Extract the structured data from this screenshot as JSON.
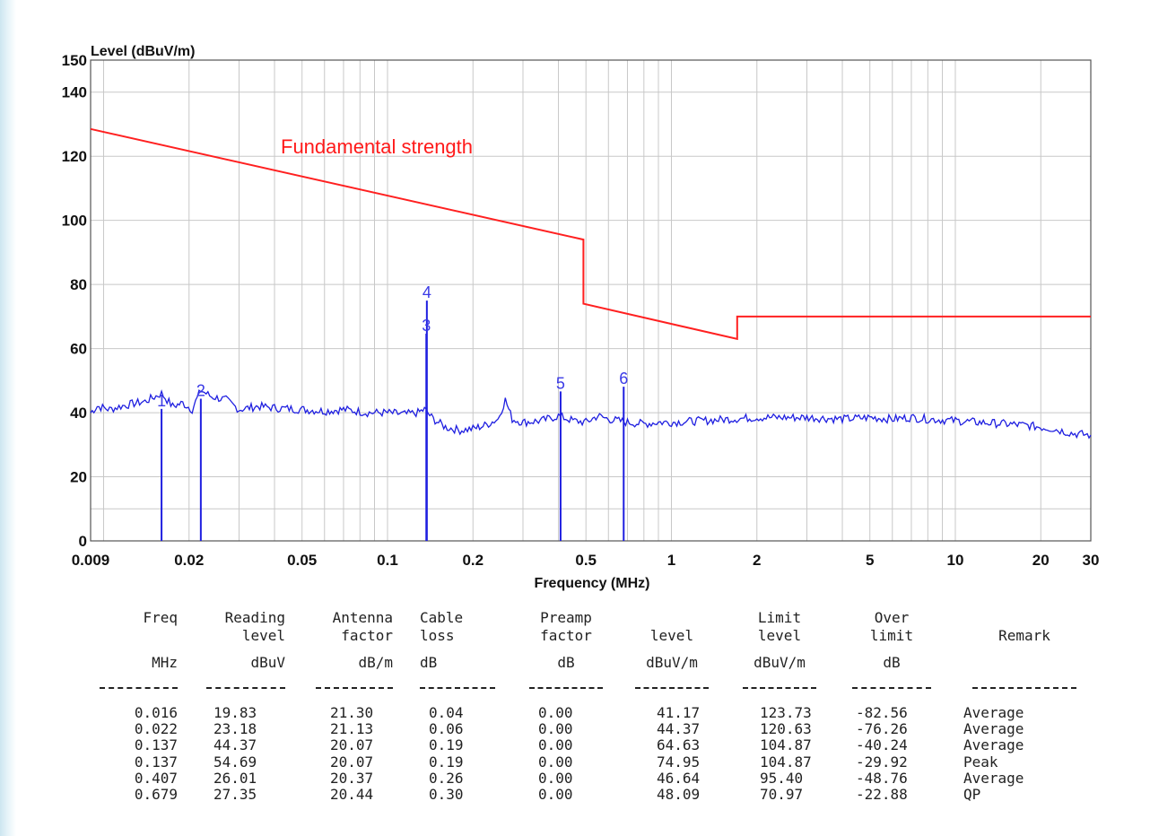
{
  "colors": {
    "trace": "#1f1fe0",
    "limit": "#ff2020",
    "marker": "#3a3ae6",
    "grid": "#c8c8c8"
  },
  "chart_data": {
    "type": "line",
    "title": "",
    "ylabel": "Level (dBuV/m)",
    "xlabel": "Frequency (MHz)",
    "xscale": "log",
    "xlim": [
      0.009,
      30
    ],
    "ylim": [
      0,
      150
    ],
    "grid": true,
    "x_tick_labels": [
      "0.009",
      "0.02",
      "0.05",
      "0.1",
      "0.2",
      "0.5",
      "1",
      "2",
      "5",
      "10",
      "20",
      "30"
    ],
    "x_tick_values": [
      0.009,
      0.02,
      0.05,
      0.1,
      0.2,
      0.5,
      1,
      2,
      5,
      10,
      20,
      30
    ],
    "y_tick_labels": [
      "0",
      "20",
      "40",
      "60",
      "80",
      "100",
      "120",
      "140",
      "150"
    ],
    "y_tick_values": [
      0,
      20,
      40,
      60,
      80,
      100,
      120,
      140,
      150
    ],
    "annotation": "Fundamental strength",
    "limit_line": [
      [
        0.009,
        128.5
      ],
      [
        0.49,
        94
      ],
      [
        0.49,
        74
      ],
      [
        1.705,
        63
      ],
      [
        1.705,
        70
      ],
      [
        30,
        70
      ]
    ],
    "trace": [
      [
        0.009,
        40
      ],
      [
        0.0095,
        42
      ],
      [
        0.0105,
        41
      ],
      [
        0.0115,
        42
      ],
      [
        0.013,
        43
      ],
      [
        0.014,
        43.5
      ],
      [
        0.016,
        46
      ],
      [
        0.0175,
        42
      ],
      [
        0.019,
        43
      ],
      [
        0.0205,
        41
      ],
      [
        0.022,
        47
      ],
      [
        0.024,
        45
      ],
      [
        0.027,
        44
      ],
      [
        0.03,
        41
      ],
      [
        0.035,
        42
      ],
      [
        0.04,
        41.5
      ],
      [
        0.05,
        41
      ],
      [
        0.06,
        40.5
      ],
      [
        0.07,
        41
      ],
      [
        0.085,
        40
      ],
      [
        0.1,
        40
      ],
      [
        0.115,
        39.5
      ],
      [
        0.128,
        40
      ],
      [
        0.135,
        41
      ],
      [
        0.145,
        38
      ],
      [
        0.16,
        35.5
      ],
      [
        0.18,
        34.5
      ],
      [
        0.2,
        35
      ],
      [
        0.22,
        36
      ],
      [
        0.245,
        38
      ],
      [
        0.26,
        44
      ],
      [
        0.275,
        38
      ],
      [
        0.3,
        37
      ],
      [
        0.35,
        37.5
      ],
      [
        0.4,
        39
      ],
      [
        0.45,
        37.5
      ],
      [
        0.5,
        37
      ],
      [
        0.55,
        39
      ],
      [
        0.6,
        38
      ],
      [
        0.7,
        37
      ],
      [
        0.8,
        36.5
      ],
      [
        0.9,
        37
      ],
      [
        1,
        37
      ],
      [
        1.3,
        37.5
      ],
      [
        1.6,
        38
      ],
      [
        2,
        38.5
      ],
      [
        2.5,
        38.5
      ],
      [
        3,
        38.5
      ],
      [
        4,
        38
      ],
      [
        5,
        38.5
      ],
      [
        6,
        38
      ],
      [
        7,
        38.5
      ],
      [
        8,
        38
      ],
      [
        10,
        37.5
      ],
      [
        12,
        37
      ],
      [
        15,
        36.5
      ],
      [
        18,
        36
      ],
      [
        22,
        35
      ],
      [
        26,
        33.5
      ],
      [
        30,
        33
      ]
    ],
    "markers": [
      {
        "label": "1",
        "freq": 0.016,
        "level": 41.17
      },
      {
        "label": "2",
        "freq": 0.022,
        "level": 44.37
      },
      {
        "label": "3",
        "freq": 0.137,
        "level": 64.63
      },
      {
        "label": "4",
        "freq": 0.137,
        "level": 74.95
      },
      {
        "label": "5",
        "freq": 0.407,
        "level": 46.64
      },
      {
        "label": "6",
        "freq": 0.679,
        "level": 48.09
      }
    ]
  },
  "table": {
    "headers": [
      [
        "Freq",
        "",
        "MHz"
      ],
      [
        "Reading",
        "level",
        "dBuV"
      ],
      [
        "Antenna",
        "factor",
        "dB/m"
      ],
      [
        "Cable",
        "loss",
        "dB"
      ],
      [
        "Preamp",
        "factor",
        "dB"
      ],
      [
        "",
        "level",
        "dBuV/m"
      ],
      [
        "Limit",
        "level",
        "dBuV/m"
      ],
      [
        "Over",
        "limit",
        "dB"
      ],
      [
        "",
        "Remark",
        ""
      ]
    ],
    "divider": "--------",
    "rows": [
      [
        "0.016",
        "19.83",
        "21.30",
        "0.04",
        "0.00",
        "41.17",
        "123.73",
        "-82.56",
        "Average"
      ],
      [
        "0.022",
        "23.18",
        "21.13",
        "0.06",
        "0.00",
        "44.37",
        "120.63",
        "-76.26",
        "Average"
      ],
      [
        "0.137",
        "44.37",
        "20.07",
        "0.19",
        "0.00",
        "64.63",
        "104.87",
        "-40.24",
        "Average"
      ],
      [
        "0.137",
        "54.69",
        "20.07",
        "0.19",
        "0.00",
        "74.95",
        "104.87",
        "-29.92",
        "Peak"
      ],
      [
        "0.407",
        "26.01",
        "20.37",
        "0.26",
        "0.00",
        "46.64",
        "95.40",
        "-48.76",
        "Average"
      ],
      [
        "0.679",
        "27.35",
        "20.44",
        "0.30",
        "0.00",
        "48.09",
        "70.97",
        "-22.88",
        "QP"
      ]
    ]
  }
}
